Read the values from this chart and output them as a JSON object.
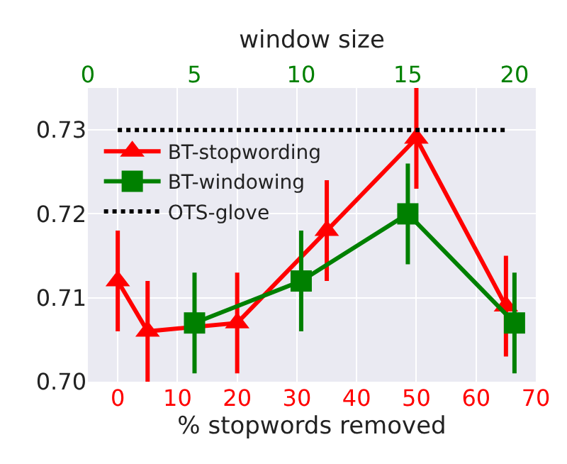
{
  "chart_data": {
    "type": "line",
    "xlabel": "% stopwords removed",
    "x2label": "window size",
    "xlim": [
      -5,
      70
    ],
    "xticks": [
      0,
      10,
      20,
      30,
      40,
      50,
      60,
      70
    ],
    "x2lim": [
      0,
      21
    ],
    "x2ticks": [
      0,
      5,
      10,
      15,
      20
    ],
    "ylim": [
      0.7,
      0.735
    ],
    "yticks": [
      {
        "value": 0.7,
        "label": "0.70"
      },
      0.71,
      0.72,
      0.73
    ],
    "grid": true,
    "legend": "top left",
    "series": [
      {
        "name": "BT-stopwording",
        "color": "#ff0000",
        "marker": "triangle",
        "line_style": "solid",
        "x": [
          0,
          5,
          20,
          35,
          50,
          65
        ],
        "values": [
          0.712,
          0.706,
          0.707,
          0.718,
          0.729,
          0.709
        ],
        "errors": [
          0.006,
          0.006,
          0.006,
          0.006,
          0.006,
          0.006
        ]
      },
      {
        "name": "BT-windowing",
        "color": "#008000",
        "marker": "square",
        "line_style": "solid",
        "axis": "x2",
        "x": [
          5,
          10,
          15,
          20
        ],
        "values": [
          0.707,
          0.712,
          0.72,
          0.707
        ],
        "errors": [
          0.006,
          0.006,
          0.006,
          0.006
        ]
      },
      {
        "name": "OTS-glove",
        "color": "#000000",
        "marker": "none",
        "line_style": "dotted",
        "x": [
          0,
          65
        ],
        "values": [
          0.73,
          0.73
        ]
      }
    ]
  }
}
